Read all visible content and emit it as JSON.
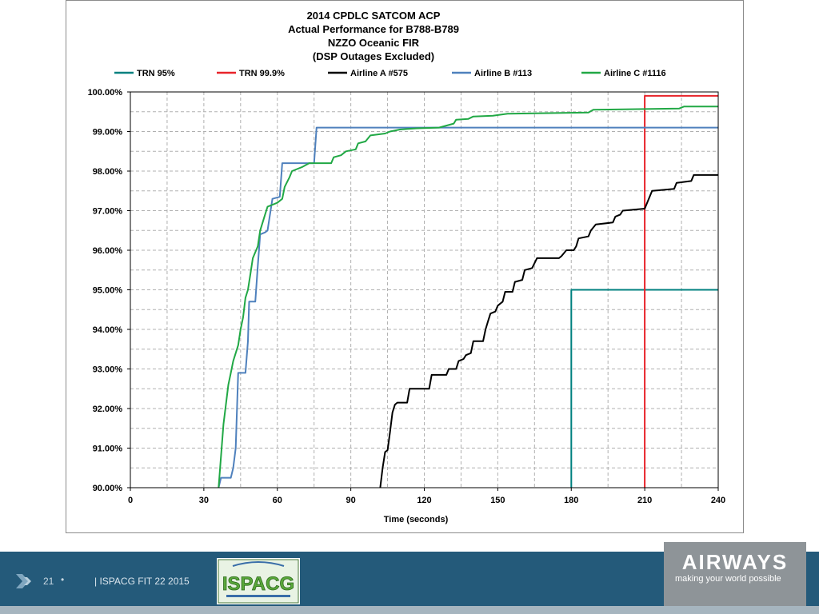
{
  "chart_data": {
    "type": "line",
    "title_lines": [
      "2014 CPDLC SATCOM ACP",
      "Actual Performance for B788-B789",
      "NZZO Oceanic FIR",
      "(DSP Outages Excluded)"
    ],
    "xlabel": "Time (seconds)",
    "ylabel": "",
    "xlim": [
      0,
      240
    ],
    "ylim": [
      90,
      100
    ],
    "xticks": [
      0,
      30,
      60,
      90,
      120,
      150,
      180,
      210,
      240
    ],
    "yticks": [
      90,
      91,
      92,
      93,
      94,
      95,
      96,
      97,
      98,
      99,
      100
    ],
    "ytick_labels": [
      "90.00%",
      "91.00%",
      "92.00%",
      "93.00%",
      "94.00%",
      "95.00%",
      "96.00%",
      "97.00%",
      "98.00%",
      "99.00%",
      "100.00%"
    ],
    "grid": true,
    "legend_position": "top",
    "series": [
      {
        "name": "TRN 95%",
        "color": "#00807f",
        "points": [
          [
            180,
            90
          ],
          [
            180,
            95
          ],
          [
            240,
            95
          ]
        ]
      },
      {
        "name": "TRN 99.9%",
        "color": "#e8232a",
        "points": [
          [
            210,
            90
          ],
          [
            210,
            99.9
          ],
          [
            240,
            99.9
          ]
        ]
      },
      {
        "name": "Airline A #575",
        "color": "#000000",
        "points": [
          [
            102,
            90
          ],
          [
            103,
            90.5
          ],
          [
            104,
            90.9
          ],
          [
            105,
            90.95
          ],
          [
            106,
            91.4
          ],
          [
            107,
            91.9
          ],
          [
            108,
            92.1
          ],
          [
            109,
            92.15
          ],
          [
            113,
            92.15
          ],
          [
            114,
            92.5
          ],
          [
            122,
            92.5
          ],
          [
            123,
            92.85
          ],
          [
            129,
            92.85
          ],
          [
            130,
            93.0
          ],
          [
            133,
            93.0
          ],
          [
            134,
            93.2
          ],
          [
            136,
            93.25
          ],
          [
            137,
            93.35
          ],
          [
            139,
            93.4
          ],
          [
            140,
            93.7
          ],
          [
            144,
            93.7
          ],
          [
            145,
            94.0
          ],
          [
            146,
            94.2
          ],
          [
            147,
            94.4
          ],
          [
            149,
            94.45
          ],
          [
            150,
            94.6
          ],
          [
            152,
            94.7
          ],
          [
            153,
            94.95
          ],
          [
            156,
            94.95
          ],
          [
            157,
            95.2
          ],
          [
            160,
            95.25
          ],
          [
            161,
            95.5
          ],
          [
            164,
            95.55
          ],
          [
            166,
            95.8
          ],
          [
            175,
            95.8
          ],
          [
            176,
            95.85
          ],
          [
            178,
            96.0
          ],
          [
            181,
            96.0
          ],
          [
            182,
            96.1
          ],
          [
            183,
            96.3
          ],
          [
            187,
            96.35
          ],
          [
            188,
            96.5
          ],
          [
            190,
            96.65
          ],
          [
            197,
            96.7
          ],
          [
            198,
            96.85
          ],
          [
            200,
            96.9
          ],
          [
            201,
            97.0
          ],
          [
            210,
            97.05
          ],
          [
            213,
            97.5
          ],
          [
            222,
            97.55
          ],
          [
            223,
            97.7
          ],
          [
            229,
            97.75
          ],
          [
            230,
            97.9
          ],
          [
            240,
            97.9
          ]
        ]
      },
      {
        "name": "Airline B #113",
        "color": "#4f81bd",
        "points": [
          [
            36,
            90
          ],
          [
            37,
            90.25
          ],
          [
            41,
            90.25
          ],
          [
            42,
            90.5
          ],
          [
            43,
            91.0
          ],
          [
            44,
            92.9
          ],
          [
            47,
            92.9
          ],
          [
            48,
            93.7
          ],
          [
            48.5,
            94.7
          ],
          [
            51,
            94.7
          ],
          [
            52,
            95.6
          ],
          [
            53,
            96.4
          ],
          [
            55,
            96.45
          ],
          [
            56,
            96.5
          ],
          [
            58,
            97.3
          ],
          [
            61,
            97.35
          ],
          [
            62,
            98.2
          ],
          [
            75,
            98.2
          ],
          [
            76,
            99.1
          ],
          [
            240,
            99.1
          ]
        ]
      },
      {
        "name": "Airline C #1116",
        "color": "#21a845",
        "points": [
          [
            36,
            90
          ],
          [
            38,
            91.6
          ],
          [
            40,
            92.6
          ],
          [
            41,
            92.9
          ],
          [
            42,
            93.2
          ],
          [
            44,
            93.6
          ],
          [
            45,
            94.0
          ],
          [
            46,
            94.3
          ],
          [
            47,
            94.8
          ],
          [
            48,
            95.0
          ],
          [
            49,
            95.4
          ],
          [
            50,
            95.8
          ],
          [
            52,
            96.1
          ],
          [
            53,
            96.5
          ],
          [
            55,
            96.9
          ],
          [
            56,
            97.1
          ],
          [
            60,
            97.2
          ],
          [
            62,
            97.3
          ],
          [
            63,
            97.6
          ],
          [
            65,
            97.85
          ],
          [
            66,
            98.0
          ],
          [
            70,
            98.1
          ],
          [
            73,
            98.2
          ],
          [
            82,
            98.2
          ],
          [
            83,
            98.35
          ],
          [
            86,
            98.4
          ],
          [
            88,
            98.5
          ],
          [
            92,
            98.55
          ],
          [
            93,
            98.7
          ],
          [
            96,
            98.75
          ],
          [
            98,
            98.9
          ],
          [
            104,
            98.95
          ],
          [
            106,
            99.0
          ],
          [
            110,
            99.05
          ],
          [
            117,
            99.08
          ],
          [
            126,
            99.1
          ],
          [
            132,
            99.2
          ],
          [
            133,
            99.3
          ],
          [
            138,
            99.32
          ],
          [
            140,
            99.38
          ],
          [
            148,
            99.4
          ],
          [
            154,
            99.45
          ],
          [
            187,
            99.48
          ],
          [
            189,
            99.55
          ],
          [
            224,
            99.58
          ],
          [
            226,
            99.63
          ],
          [
            240,
            99.63
          ]
        ]
      }
    ]
  },
  "footer": {
    "page_number": "21",
    "bullet": "•",
    "text": "| ISPACG FIT 22 2015"
  },
  "logos": {
    "ispacg": {
      "text": "ISPACG"
    },
    "airways": {
      "name": "AIRWAYS",
      "tagline": "making your world possible"
    }
  },
  "colors": {
    "footer_background": "#245a7a",
    "airways_logo_background": "#8e9498"
  }
}
